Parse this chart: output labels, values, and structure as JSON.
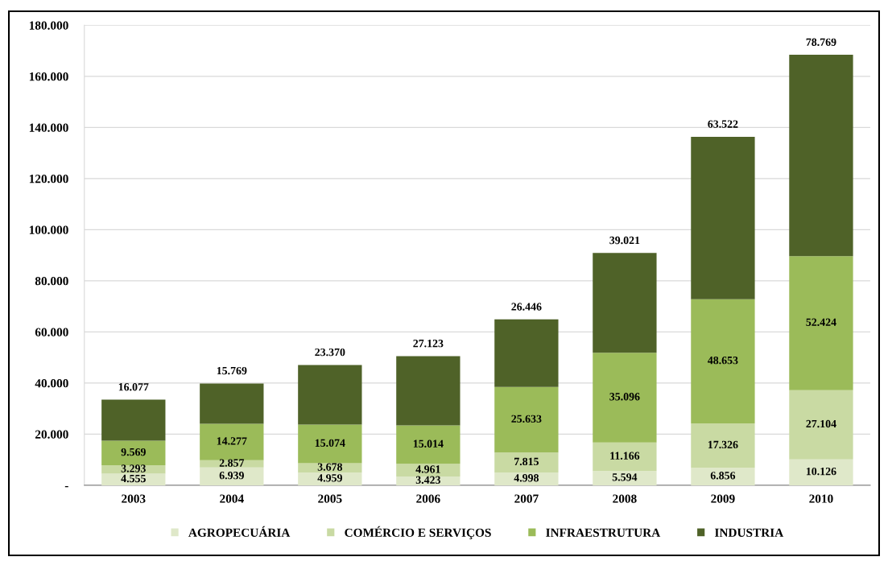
{
  "chart_data": {
    "type": "bar",
    "stacked": true,
    "categories": [
      "2003",
      "2004",
      "2005",
      "2006",
      "2007",
      "2008",
      "2009",
      "2010"
    ],
    "series": [
      {
        "name": "AGROPECUÁRIA",
        "color": "#dfe8c9",
        "values": [
          4555,
          6939,
          4959,
          3423,
          4998,
          5594,
          6856,
          10126
        ],
        "value_labels": [
          "4.555",
          "6.939",
          "4.959",
          "3.423",
          "4.998",
          "5.594",
          "6.856",
          "10.126"
        ]
      },
      {
        "name": "COMÉRCIO E SERVIÇOS",
        "color": "#c9daa3",
        "values": [
          3293,
          2857,
          3678,
          4961,
          7815,
          11166,
          17326,
          27104
        ],
        "value_labels": [
          "3.293",
          "2.857",
          "3.678",
          "4.961",
          "7.815",
          "11.166",
          "17.326",
          "27.104"
        ]
      },
      {
        "name": "INFRAESTRUTURA",
        "color": "#9bbb59",
        "values": [
          9569,
          14277,
          15074,
          15014,
          25633,
          35096,
          48653,
          52424
        ],
        "value_labels": [
          "9.569",
          "14.277",
          "15.074",
          "15.014",
          "25.633",
          "35.096",
          "48.653",
          "52.424"
        ]
      },
      {
        "name": "INDUSTRIA",
        "color": "#4f6228",
        "values": [
          16077,
          15769,
          23370,
          27123,
          26446,
          39021,
          63522,
          78769
        ],
        "value_labels": [
          "16.077",
          "15.769",
          "23.370",
          "27.123",
          "26.446",
          "39.021",
          "63.522",
          "78.769"
        ]
      }
    ],
    "ylim": [
      0,
      180000
    ],
    "yticks": [
      {
        "value": 0,
        "label": "-"
      },
      {
        "value": 20000,
        "label": "20.000"
      },
      {
        "value": 40000,
        "label": "40.000"
      },
      {
        "value": 60000,
        "label": "60.000"
      },
      {
        "value": 80000,
        "label": "80.000"
      },
      {
        "value": 100000,
        "label": "100.000"
      },
      {
        "value": 120000,
        "label": "120.000"
      },
      {
        "value": 140000,
        "label": "140.000"
      },
      {
        "value": 160000,
        "label": "160.000"
      },
      {
        "value": 180000,
        "label": "180.000"
      }
    ],
    "grid": "y",
    "legend": "bottom"
  }
}
